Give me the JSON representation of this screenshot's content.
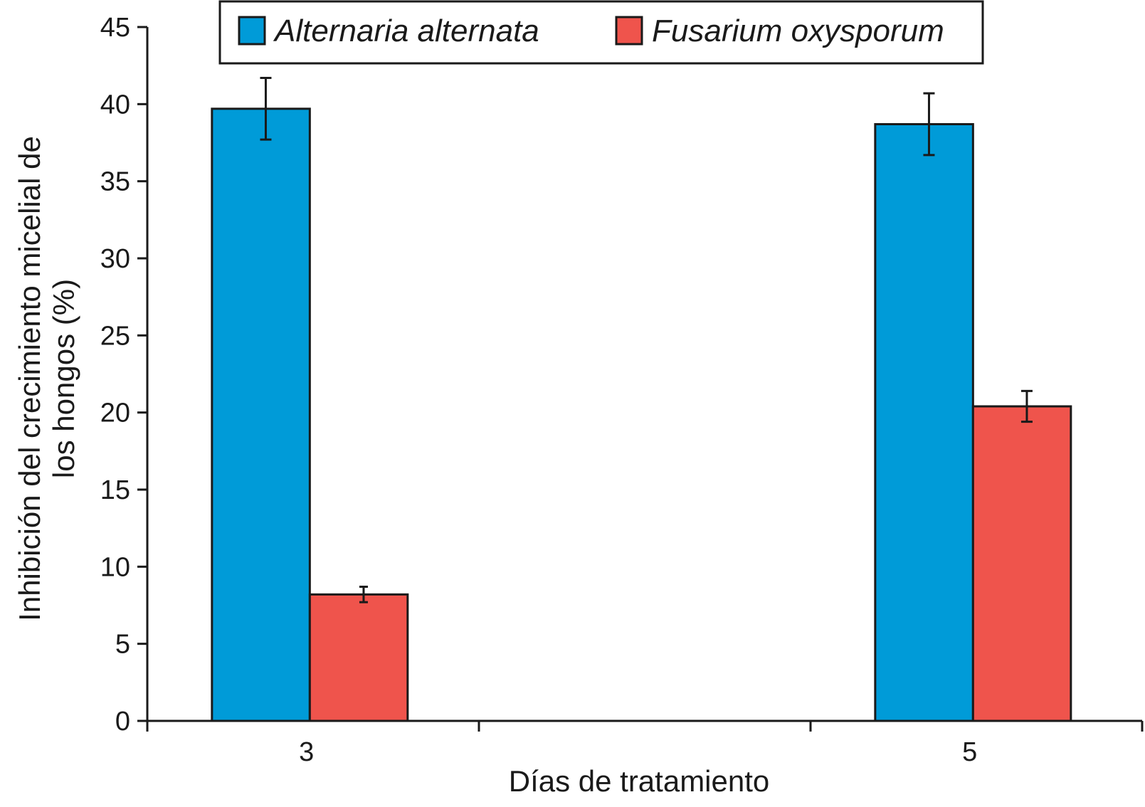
{
  "chart_data": {
    "type": "bar",
    "categories": [
      "3",
      "5"
    ],
    "series": [
      {
        "name": "Alternaria alternata",
        "color": "#009bd8",
        "values": [
          39.7,
          38.7
        ],
        "errors": [
          2.0,
          2.0
        ]
      },
      {
        "name": "Fusarium oxysporum",
        "color": "#ef544c",
        "values": [
          8.2,
          20.4
        ],
        "errors": [
          0.5,
          1.0
        ]
      }
    ],
    "xlabel": "Días de tratamiento",
    "ylabel_line1": "Inhibición del crecimiento micelial de",
    "ylabel_line2": "los hongos (%)",
    "ylim": [
      0,
      45
    ],
    "yticks": [
      0,
      5,
      10,
      15,
      20,
      25,
      30,
      35,
      40,
      45
    ],
    "grid": false,
    "legend_position": "top"
  }
}
